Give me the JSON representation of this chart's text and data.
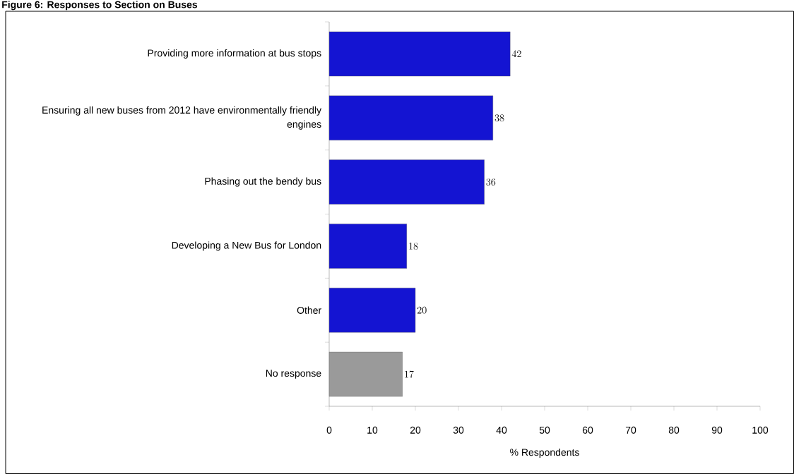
{
  "chart_data": {
    "type": "bar",
    "orientation": "horizontal",
    "title": "Figure 6: Responses to Section on Buses",
    "categories": [
      "Providing more information at bus stops",
      "Ensuring all new buses from 2012 have environmentally friendly engines",
      "Phasing out the bendy bus",
      "Developing a New Bus for London",
      "Other",
      "No response"
    ],
    "values": [
      42,
      38,
      36,
      18,
      20,
      17
    ],
    "colors": [
      "#1414d2",
      "#1414d2",
      "#1414d2",
      "#1414d2",
      "#1414d2",
      "#9a9a9a"
    ],
    "xlim": [
      0,
      100
    ],
    "xticks": [
      0,
      10,
      20,
      30,
      40,
      50,
      60,
      70,
      80,
      90,
      100
    ],
    "xlabel": "% Respondents",
    "data_labels": true
  }
}
